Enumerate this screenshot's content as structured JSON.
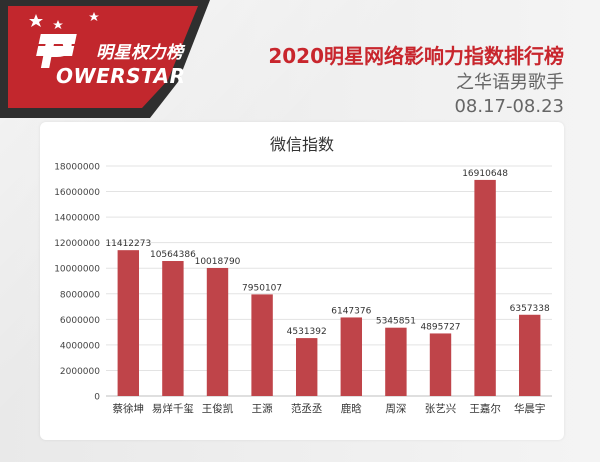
{
  "logo": {
    "cn_text": "明星权力榜",
    "en_text": "OWERSTAR",
    "en_initial": "P",
    "brand_color": "#c8262d"
  },
  "header": {
    "title": "2020明星网络影响力指数排行榜",
    "subtitle": "之华语男歌手",
    "date_range": "08.17-08.23"
  },
  "chart_data": {
    "type": "bar",
    "title": "微信指数",
    "categories": [
      "蔡徐坤",
      "易烊千玺",
      "王俊凯",
      "王源",
      "范丞丞",
      "鹿晗",
      "周深",
      "张艺兴",
      "王嘉尔",
      "华晨宇"
    ],
    "values": [
      11412273,
      10564386,
      10018790,
      7950107,
      4531392,
      6147376,
      5345851,
      4895727,
      16910648,
      6357338
    ],
    "data_labels": [
      "11412273",
      "10564386",
      "10018790",
      "7950107",
      "4531392",
      "6147376",
      "5345851",
      "4895727",
      "16910648",
      "6357338"
    ],
    "y_ticks": [
      "0",
      "2000000",
      "4000000",
      "6000000",
      "8000000",
      "10000000",
      "12000000",
      "14000000",
      "16000000",
      "18000000"
    ],
    "ylim": [
      0,
      18000000
    ],
    "xlabel": "",
    "ylabel": "",
    "grid": true,
    "bar_color": "#bf4449"
  }
}
